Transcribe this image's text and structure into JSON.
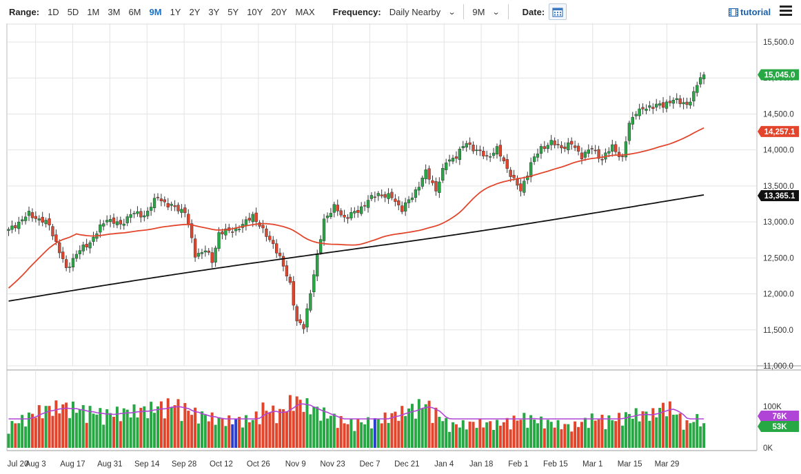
{
  "toolbar": {
    "range_label": "Range:",
    "ranges": [
      "1D",
      "5D",
      "1M",
      "3M",
      "6M",
      "9M",
      "1Y",
      "2Y",
      "3Y",
      "5Y",
      "10Y",
      "20Y",
      "MAX"
    ],
    "active_range": "9M",
    "frequency_label": "Frequency:",
    "frequency_value": "Daily Nearby",
    "period_value": "9M",
    "date_label": "Date:",
    "tutorial_label": "tutorial"
  },
  "colors": {
    "up": "#27a844",
    "down": "#e2452b",
    "ma_short": "#e2452b",
    "ma_long": "#111111",
    "volume_avg": "#b044d6",
    "price_tag": "#27a844",
    "volume_unusual": "#2a3fd0"
  },
  "chart_data": {
    "type": "candlestick",
    "price_axis": {
      "ticks": [
        11000,
        11500,
        12000,
        12500,
        13000,
        13500,
        14000,
        14500,
        15000,
        15500
      ],
      "tick_labels": [
        "11,000.0",
        "11,500.0",
        "12,000.0",
        "12,500.0",
        "13,000.0",
        "13,500.0",
        "14,000.0",
        "14,500.0",
        "15,000.0",
        "15,500.0"
      ],
      "range": [
        11000,
        15500
      ]
    },
    "volume_axis": {
      "tick_labels": [
        "0K",
        "100K"
      ],
      "range": [
        0,
        100000
      ]
    },
    "x_labels": [
      "Jul 20",
      "Aug 3",
      "Aug 17",
      "Aug 31",
      "Sep 14",
      "Sep 28",
      "Oct 12",
      "Oct 26",
      "Nov 9",
      "Nov 23",
      "Dec 7",
      "Dec 21",
      "Jan 4",
      "Jan 18",
      "Feb 1",
      "Feb 15",
      "Mar 1",
      "Mar 15",
      "Mar 29"
    ],
    "last_price": 15045.0,
    "last_price_label": "15,045.0",
    "ma_short_last": 14257.1,
    "ma_short_last_label": "14,257.1",
    "ma_long_last": 13365.1,
    "ma_long_last_label": "13,365.1",
    "volume_avg_last_label": "76K",
    "volume_last_label": "53K",
    "close_anchors": [
      [
        0,
        12880
      ],
      [
        6,
        13110
      ],
      [
        12,
        12960
      ],
      [
        17,
        12340
      ],
      [
        20,
        12560
      ],
      [
        24,
        12720
      ],
      [
        29,
        13050
      ],
      [
        33,
        12950
      ],
      [
        36,
        13120
      ],
      [
        40,
        13090
      ],
      [
        44,
        13350
      ],
      [
        47,
        13230
      ],
      [
        52,
        13150
      ],
      [
        55,
        12540
      ],
      [
        58,
        12610
      ],
      [
        60,
        12450
      ],
      [
        62,
        12850
      ],
      [
        66,
        12880
      ],
      [
        69,
        12950
      ],
      [
        72,
        13100
      ],
      [
        75,
        12870
      ],
      [
        78,
        12700
      ],
      [
        81,
        12380
      ],
      [
        83,
        12150
      ],
      [
        85,
        11600
      ],
      [
        87,
        11540
      ],
      [
        89,
        12030
      ],
      [
        91,
        12510
      ],
      [
        93,
        13040
      ],
      [
        96,
        13200
      ],
      [
        99,
        13060
      ],
      [
        103,
        13150
      ],
      [
        106,
        13300
      ],
      [
        109,
        13390
      ],
      [
        113,
        13340
      ],
      [
        116,
        13180
      ],
      [
        119,
        13350
      ],
      [
        123,
        13690
      ],
      [
        126,
        13450
      ],
      [
        129,
        13830
      ],
      [
        132,
        13920
      ],
      [
        135,
        14100
      ],
      [
        138,
        13990
      ],
      [
        141,
        13900
      ],
      [
        144,
        14010
      ],
      [
        147,
        13750
      ],
      [
        149,
        13580
      ],
      [
        151,
        13430
      ],
      [
        154,
        13810
      ],
      [
        157,
        14030
      ],
      [
        160,
        14100
      ],
      [
        163,
        14040
      ],
      [
        166,
        14080
      ],
      [
        169,
        13920
      ],
      [
        172,
        14020
      ],
      [
        175,
        13870
      ],
      [
        178,
        14050
      ],
      [
        181,
        13880
      ],
      [
        183,
        14360
      ],
      [
        185,
        14540
      ],
      [
        188,
        14570
      ],
      [
        191,
        14640
      ],
      [
        193,
        14600
      ],
      [
        196,
        14720
      ],
      [
        198,
        14650
      ],
      [
        200,
        14630
      ],
      [
        202,
        14790
      ],
      [
        204,
        15000
      ],
      [
        205,
        15045
      ]
    ],
    "volume_highs": [
      [
        0,
        62000
      ],
      [
        10,
        108000
      ],
      [
        16,
        118000
      ],
      [
        28,
        96000
      ],
      [
        40,
        108000
      ],
      [
        49,
        125000
      ],
      [
        55,
        98000
      ],
      [
        63,
        78000
      ],
      [
        72,
        80000
      ],
      [
        75,
        112000
      ],
      [
        80,
        98000
      ],
      [
        84,
        138000
      ],
      [
        92,
        102000
      ],
      [
        100,
        70000
      ],
      [
        108,
        76000
      ],
      [
        115,
        98000
      ],
      [
        123,
        126000
      ],
      [
        130,
        64000
      ],
      [
        138,
        70000
      ],
      [
        144,
        68000
      ],
      [
        152,
        86000
      ],
      [
        158,
        74000
      ],
      [
        166,
        60000
      ],
      [
        172,
        84000
      ],
      [
        178,
        80000
      ],
      [
        184,
        96000
      ],
      [
        190,
        96000
      ],
      [
        194,
        122000
      ],
      [
        200,
        68000
      ],
      [
        204,
        88000
      ],
      [
        205,
        62000
      ]
    ]
  }
}
